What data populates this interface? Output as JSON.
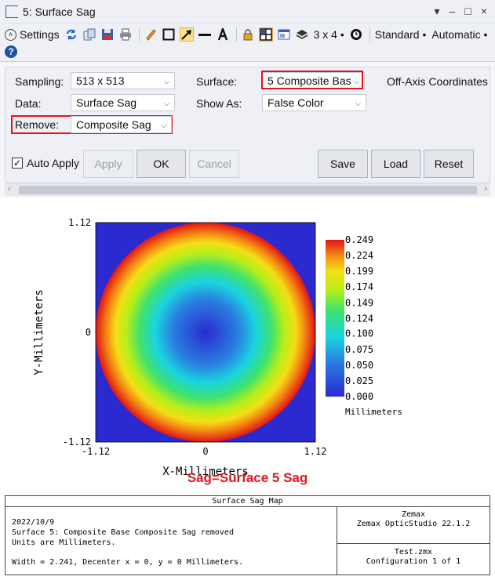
{
  "window": {
    "title": "5: Surface Sag",
    "controls": [
      "▾",
      "–",
      "□",
      "×"
    ]
  },
  "toolbar": {
    "settings_label": "Settings",
    "layout_label": "3 x 4 •",
    "standard_label": "Standard •",
    "automatic_label": "Automatic •",
    "icons": [
      "refresh-icon",
      "copy-icon",
      "save-icon",
      "print-icon",
      "pencil-icon",
      "rectangle-icon",
      "arrow-icon",
      "line-icon",
      "text-icon",
      "lock-icon",
      "grid-icon",
      "window-icon",
      "layers-icon",
      "clock-icon",
      "help-icon"
    ]
  },
  "settings": {
    "sampling_label": "Sampling:",
    "sampling_value": "513 x 513",
    "surface_label": "Surface:",
    "surface_value": "5 Composite Bas",
    "offaxis_label": "Off-Axis Coordinates",
    "data_label": "Data:",
    "data_value": "Surface Sag",
    "showas_label": "Show As:",
    "showas_value": "False Color",
    "remove_label": "Remove:",
    "remove_value": "Composite Sag",
    "auto_apply_label": "Auto Apply",
    "auto_apply_checked": true,
    "apply_label": "Apply",
    "ok_label": "OK",
    "cancel_label": "Cancel",
    "save_label": "Save",
    "load_label": "Load",
    "reset_label": "Reset",
    "highlight_color": "#e0141e"
  },
  "chart_data": {
    "type": "heatmap",
    "xlabel": "X-Millimeters",
    "ylabel": "Y-Millimeters",
    "x_ticks": [
      "-1.12",
      "0",
      "1.12"
    ],
    "y_ticks": [
      "1.12",
      "0",
      "-1.12"
    ],
    "xlim": [
      -1.12,
      1.12
    ],
    "ylim": [
      -1.12,
      1.12
    ],
    "colorbar_ticks": [
      "0.249",
      "0.224",
      "0.199",
      "0.174",
      "0.149",
      "0.124",
      "0.100",
      "0.075",
      "0.050",
      "0.025",
      "0.000"
    ],
    "colorbar_unit": "Millimeters",
    "value_range": [
      0.0,
      0.249
    ],
    "background_color": "#2a2ad0",
    "colormap": "false-color (blue-cyan-green-yellow-red)",
    "legend_placement": "right"
  },
  "caption": "Sag=Surface 5 Sag",
  "info": {
    "header": "Surface Sag Map",
    "date": "2022/10/9",
    "line1": "Surface 5: Composite Base Composite Sag removed",
    "line2": "Units are Millimeters.",
    "line3": "Width = 2.241, Decenter x = 0, y = 0 Millimeters.",
    "company": "Zemax",
    "product": "Zemax OpticStudio 22.1.2",
    "file": "Test.zmx",
    "config": "Configuration 1 of 1"
  }
}
